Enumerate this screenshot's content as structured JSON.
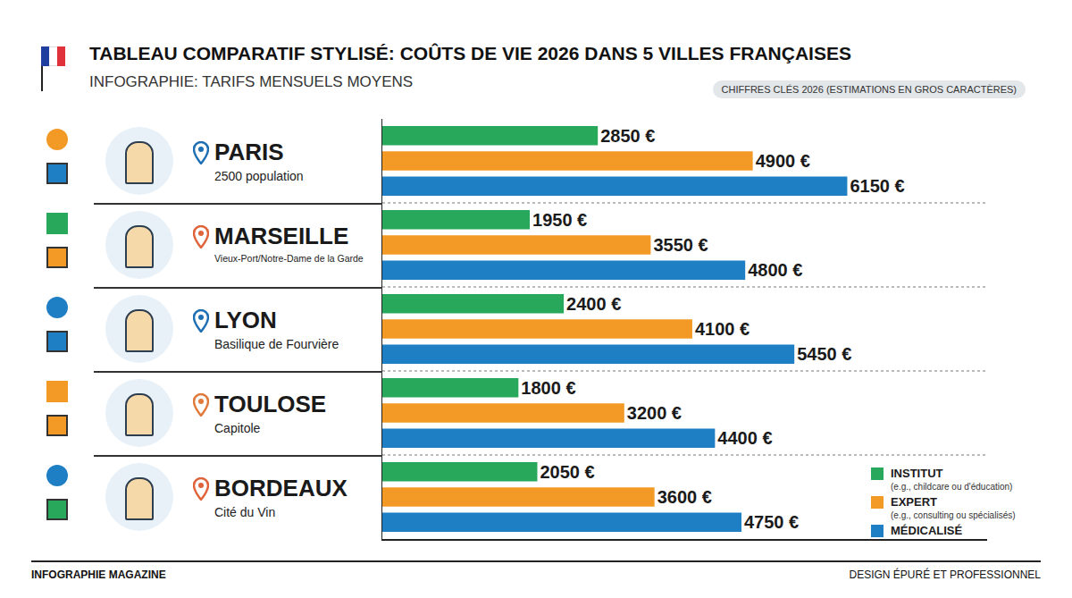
{
  "chart_data": {
    "type": "bar",
    "title": "TABLEAU COMPARATIF STYLISÉ: COÛTS DE VIE 2026 DANS 5 VILLES FRANÇAISES",
    "subtitle": "INFOGRAPHIE: TARIFS MENSUELS MOYENS",
    "badge": "CHIFFRES CLÉS 2026 (ESTIMATIONS EN GROS CARACTÈRES)",
    "footer_left": "INFOGRAPHIE MAGAZINE",
    "footer_right": "DESIGN ÉPURÉ ET PROFESSIONNEL",
    "orientation": "horizontal",
    "data_labels": true,
    "tick_labels": false,
    "grid": false,
    "legend": "lower right",
    "categories": [
      "PARIS",
      "MARSEILLE",
      "LYON",
      "TOULOSE",
      "BORDEAUX"
    ],
    "category_subtitles": [
      "2500 population",
      "Vieux-Port/Notre-Dame de la Garde",
      "Basilique de Fourvière",
      "Capitole",
      "Cité du Vin"
    ],
    "xlim": [
      0,
      8000
    ],
    "xticks": [],
    "series": [
      {
        "name": "INSTITUT",
        "description": "(e.g., childcare ou d'éducation)",
        "color": "#27a85a",
        "values": [
          2850,
          1950,
          2400,
          1800,
          2050
        ],
        "value_labels": [
          "2850 €",
          "1950 €",
          "2400 €",
          "1800 €",
          "2050 €"
        ]
      },
      {
        "name": "EXPERT",
        "description": "(e.g., consulting ou spécialisés)",
        "color": "#f39a26",
        "values": [
          4900,
          3550,
          4100,
          3200,
          3600
        ],
        "value_labels": [
          "4900 €",
          "3550 €",
          "4100 €",
          "3200 €",
          "3600 €"
        ]
      },
      {
        "name": "MÉDICALISÉ",
        "color": "#1f7fc4",
        "values": [
          6150,
          4800,
          5450,
          4400,
          4750
        ],
        "value_labels": [
          "6150 €",
          "4800 €",
          "5450 €",
          "4400 €",
          "4750 €"
        ]
      }
    ]
  }
}
